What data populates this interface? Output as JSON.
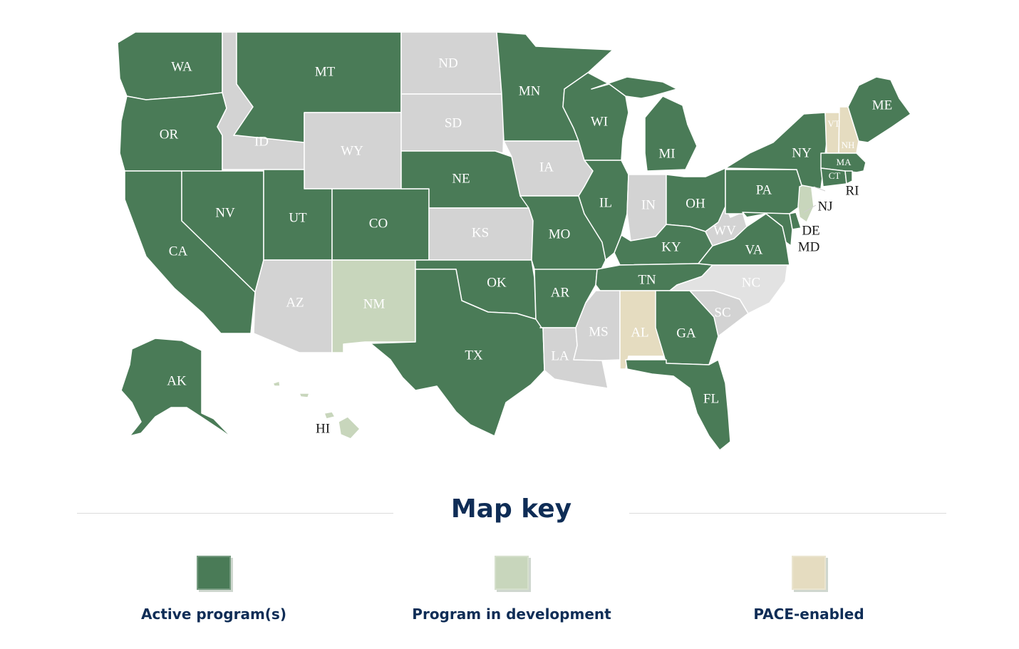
{
  "colors": {
    "active": "#4a7b57",
    "development": "#c8d6bc",
    "pace": "#e5dcc0",
    "none": "#d3d3d3",
    "none_light": "#e2e2e2",
    "text_navy": "#0f2d56"
  },
  "map": {
    "states": [
      {
        "code": "WA",
        "status": "active"
      },
      {
        "code": "OR",
        "status": "active"
      },
      {
        "code": "CA",
        "status": "active"
      },
      {
        "code": "NV",
        "status": "active"
      },
      {
        "code": "ID",
        "status": "none"
      },
      {
        "code": "MT",
        "status": "active"
      },
      {
        "code": "WY",
        "status": "none"
      },
      {
        "code": "UT",
        "status": "active"
      },
      {
        "code": "CO",
        "status": "active"
      },
      {
        "code": "AZ",
        "status": "none"
      },
      {
        "code": "NM",
        "status": "development"
      },
      {
        "code": "ND",
        "status": "none"
      },
      {
        "code": "SD",
        "status": "none"
      },
      {
        "code": "NE",
        "status": "active"
      },
      {
        "code": "KS",
        "status": "none"
      },
      {
        "code": "OK",
        "status": "active"
      },
      {
        "code": "TX",
        "status": "active"
      },
      {
        "code": "MN",
        "status": "active"
      },
      {
        "code": "IA",
        "status": "none"
      },
      {
        "code": "MO",
        "status": "active"
      },
      {
        "code": "AR",
        "status": "active"
      },
      {
        "code": "LA",
        "status": "none"
      },
      {
        "code": "WI",
        "status": "active"
      },
      {
        "code": "IL",
        "status": "active"
      },
      {
        "code": "MI",
        "status": "active"
      },
      {
        "code": "IN",
        "status": "none"
      },
      {
        "code": "OH",
        "status": "active"
      },
      {
        "code": "KY",
        "status": "active"
      },
      {
        "code": "TN",
        "status": "active"
      },
      {
        "code": "MS",
        "status": "none"
      },
      {
        "code": "AL",
        "status": "pace"
      },
      {
        "code": "GA",
        "status": "active"
      },
      {
        "code": "FL",
        "status": "active"
      },
      {
        "code": "SC",
        "status": "none"
      },
      {
        "code": "NC",
        "status": "none_light"
      },
      {
        "code": "VA",
        "status": "active"
      },
      {
        "code": "WV",
        "status": "none"
      },
      {
        "code": "PA",
        "status": "active"
      },
      {
        "code": "NY",
        "status": "active"
      },
      {
        "code": "VT",
        "status": "pace"
      },
      {
        "code": "NH",
        "status": "pace"
      },
      {
        "code": "ME",
        "status": "active"
      },
      {
        "code": "MA",
        "status": "active"
      },
      {
        "code": "CT",
        "status": "active"
      },
      {
        "code": "RI",
        "status": "active"
      },
      {
        "code": "NJ",
        "status": "development"
      },
      {
        "code": "DE",
        "status": "active"
      },
      {
        "code": "MD",
        "status": "active"
      },
      {
        "code": "AK",
        "status": "active"
      },
      {
        "code": "HI",
        "status": "development"
      }
    ]
  },
  "key": {
    "title": "Map key",
    "items": [
      {
        "label": "Active program(s)",
        "color": "#4a7b57"
      },
      {
        "label": "Program in development",
        "color": "#c8d6bc"
      },
      {
        "label": "PACE-enabled",
        "color": "#e5dcc0"
      }
    ]
  }
}
